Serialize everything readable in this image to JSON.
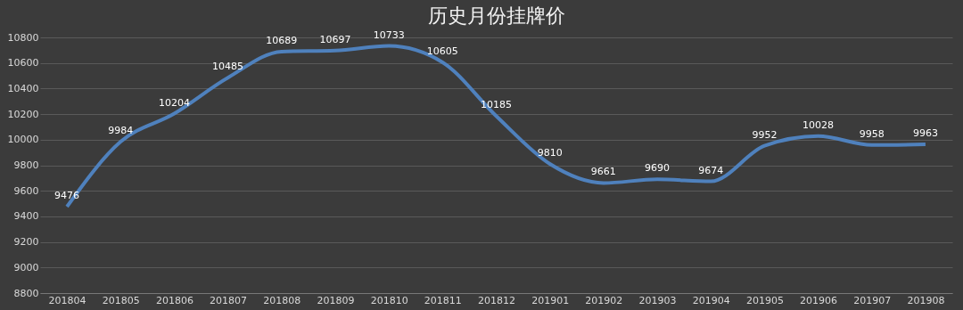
{
  "chart_data": {
    "type": "line",
    "title": "历史月份挂牌价",
    "categories": [
      "201804",
      "201805",
      "201806",
      "201807",
      "201808",
      "201809",
      "201810",
      "201811",
      "201812",
      "201901",
      "201902",
      "201903",
      "201904",
      "201905",
      "201906",
      "201907",
      "201908"
    ],
    "series": [
      {
        "color": "#4f81bd",
        "values": [
          9476,
          9984,
          10204,
          10485,
          10689,
          10697,
          10733,
          10605,
          10185,
          9810,
          9661,
          9690,
          9674,
          9952,
          10028,
          9958,
          9963
        ]
      }
    ],
    "ylim": [
      8800,
      10800
    ],
    "yticks": [
      8800,
      9000,
      9200,
      9400,
      9600,
      9800,
      10000,
      10200,
      10400,
      10600,
      10800
    ],
    "grid": "y",
    "data_labels": true,
    "legend": false,
    "marker": "none",
    "line_style": "solid"
  }
}
